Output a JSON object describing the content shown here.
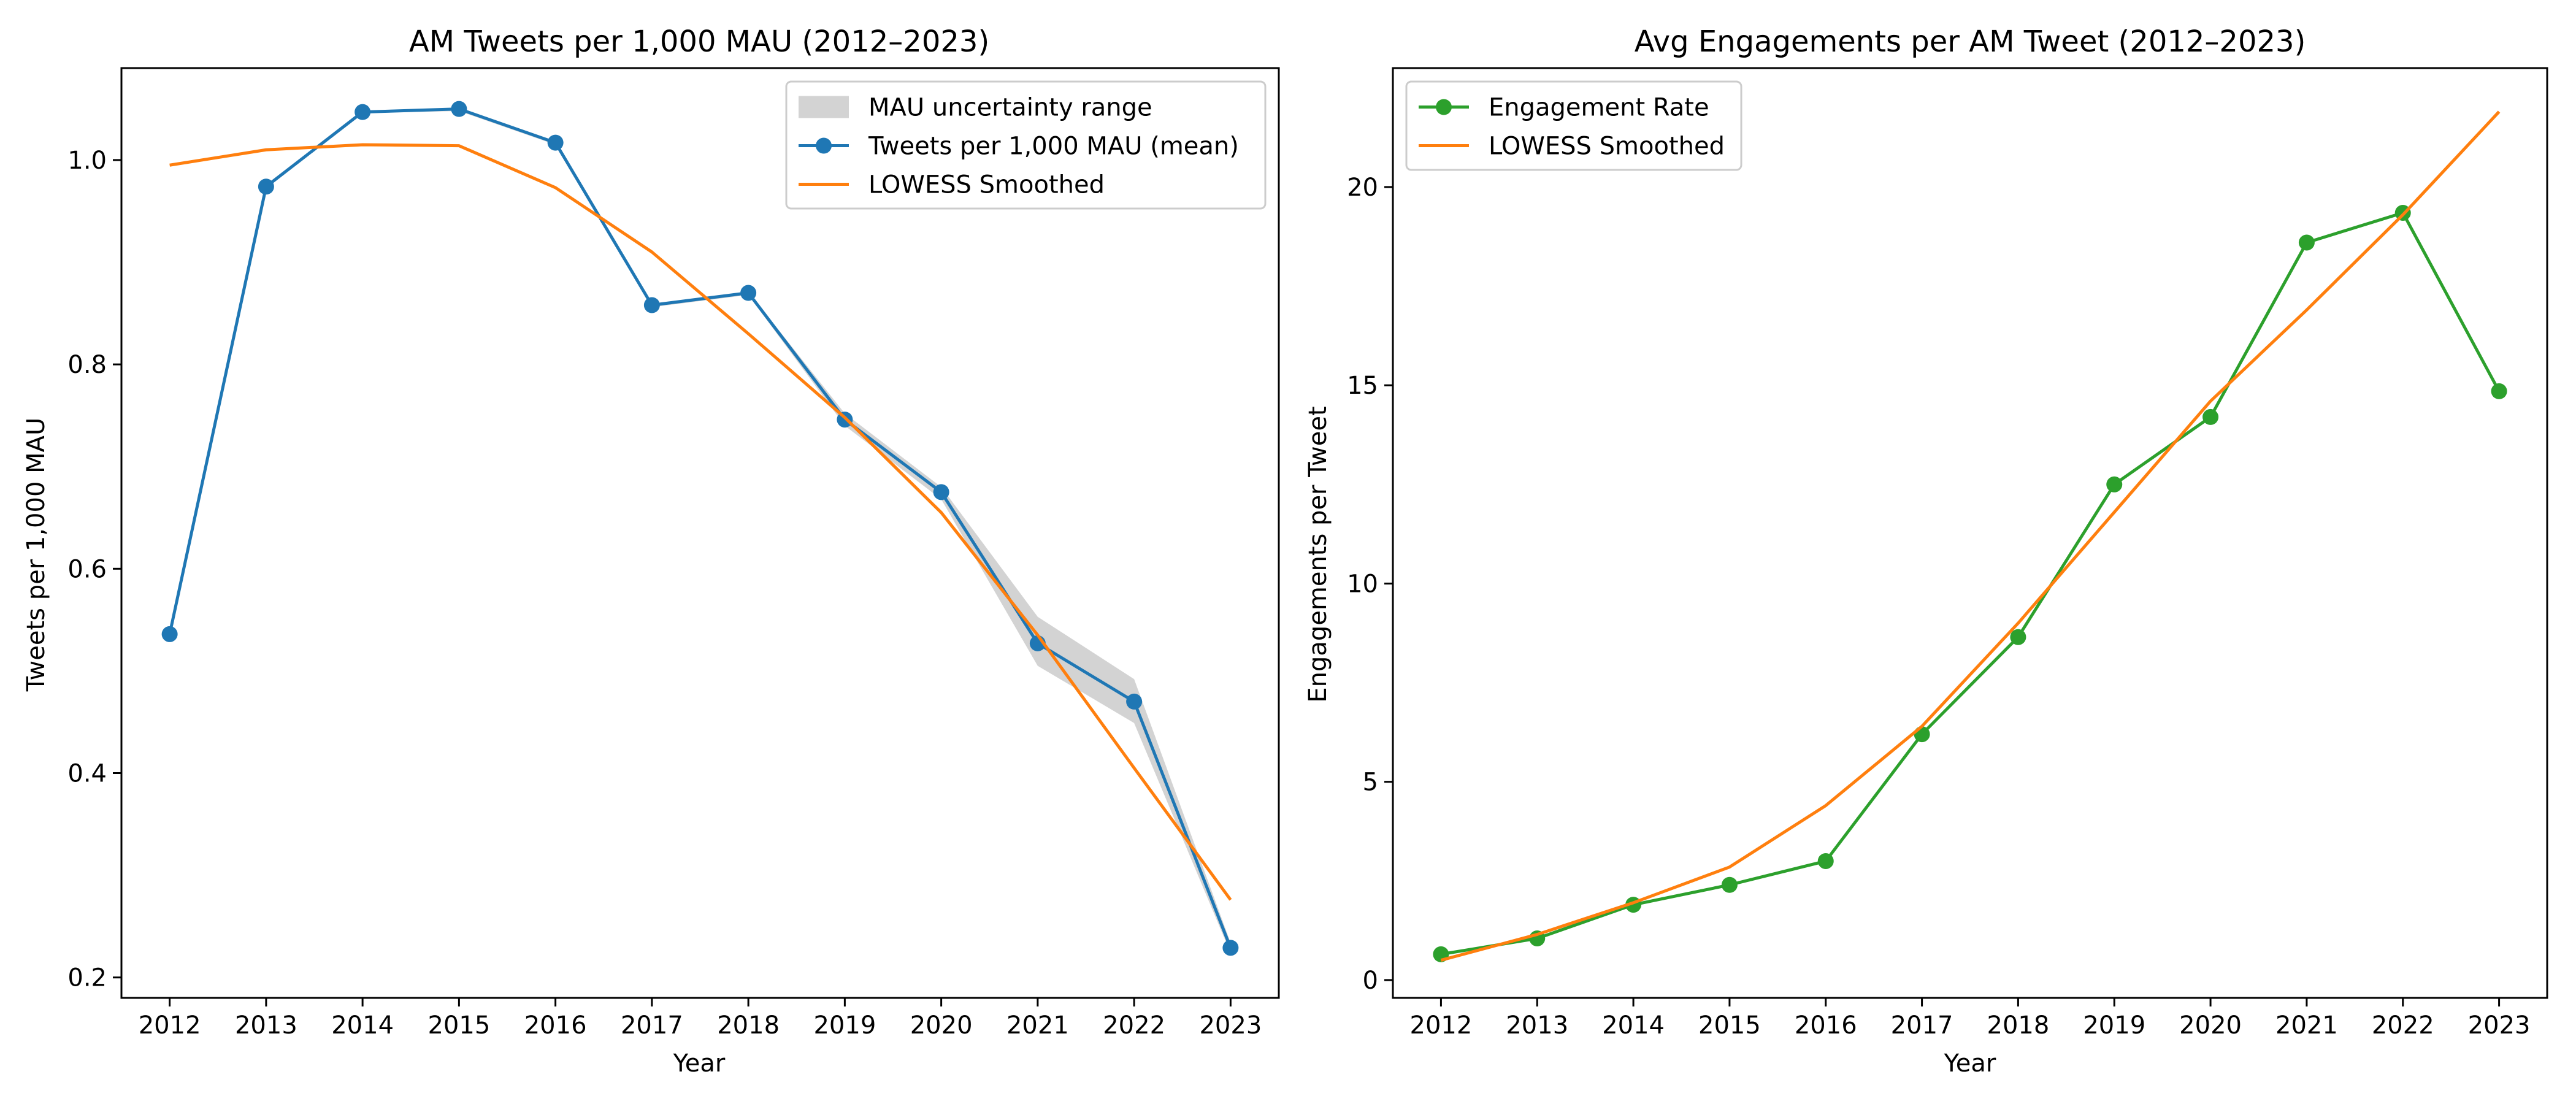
{
  "chart_data": [
    {
      "type": "line",
      "title": "AM Tweets per 1,000 MAU (2012–2023)",
      "xlabel": "Year",
      "ylabel": "Tweets per 1,000 MAU",
      "x": [
        2012,
        2013,
        2014,
        2015,
        2016,
        2017,
        2018,
        2019,
        2020,
        2021,
        2022,
        2023
      ],
      "xlim": [
        2011.5,
        2023.5
      ],
      "ylim": [
        0.18,
        1.09
      ],
      "yticks": [
        0.2,
        0.4,
        0.6,
        0.8,
        1.0
      ],
      "ytick_labels": [
        "0.2",
        "0.4",
        "0.6",
        "0.8",
        "1.0"
      ],
      "legend_position": "top-right",
      "series": [
        {
          "name": "MAU uncertainty range",
          "kind": "band",
          "color": "#d3d3d3",
          "lower": [
            0.535,
            0.972,
            1.046,
            1.048,
            1.015,
            0.856,
            0.868,
            0.74,
            0.668,
            0.505,
            0.449,
            0.224
          ],
          "upper": [
            0.537,
            0.976,
            1.048,
            1.051,
            1.018,
            0.859,
            0.871,
            0.752,
            0.68,
            0.553,
            0.492,
            0.234
          ]
        },
        {
          "name": "Tweets per 1,000 MAU (mean)",
          "kind": "line-markers",
          "color": "#1f77b4",
          "values": [
            0.536,
            0.974,
            1.047,
            1.05,
            1.017,
            0.858,
            0.87,
            0.746,
            0.675,
            0.527,
            0.47,
            0.229
          ]
        },
        {
          "name": "LOWESS Smoothed",
          "kind": "line",
          "color": "#ff7f0e",
          "values": [
            0.995,
            1.01,
            1.015,
            1.014,
            0.973,
            0.91,
            0.83,
            0.748,
            0.655,
            0.535,
            0.405,
            0.276
          ]
        }
      ]
    },
    {
      "type": "line",
      "title": "Avg Engagements per AM Tweet (2012–2023)",
      "xlabel": "Year",
      "ylabel": "Engagements per Tweet",
      "x": [
        2012,
        2013,
        2014,
        2015,
        2016,
        2017,
        2018,
        2019,
        2020,
        2021,
        2022,
        2023
      ],
      "xlim": [
        2011.5,
        2023.5
      ],
      "ylim": [
        -0.45,
        23.0
      ],
      "yticks": [
        0,
        5,
        10,
        15,
        20
      ],
      "ytick_labels": [
        "0",
        "5",
        "10",
        "15",
        "20"
      ],
      "legend_position": "top-left",
      "series": [
        {
          "name": "Engagement Rate",
          "kind": "line-markers",
          "color": "#2ca02c",
          "values": [
            0.65,
            1.05,
            1.9,
            2.4,
            3.0,
            6.2,
            8.65,
            12.5,
            14.2,
            18.6,
            19.35,
            14.85
          ]
        },
        {
          "name": "LOWESS Smoothed",
          "kind": "line",
          "color": "#ff7f0e",
          "values": [
            0.5,
            1.15,
            1.95,
            2.85,
            4.4,
            6.4,
            9.0,
            11.8,
            14.6,
            16.9,
            19.3,
            21.9
          ]
        }
      ]
    }
  ]
}
